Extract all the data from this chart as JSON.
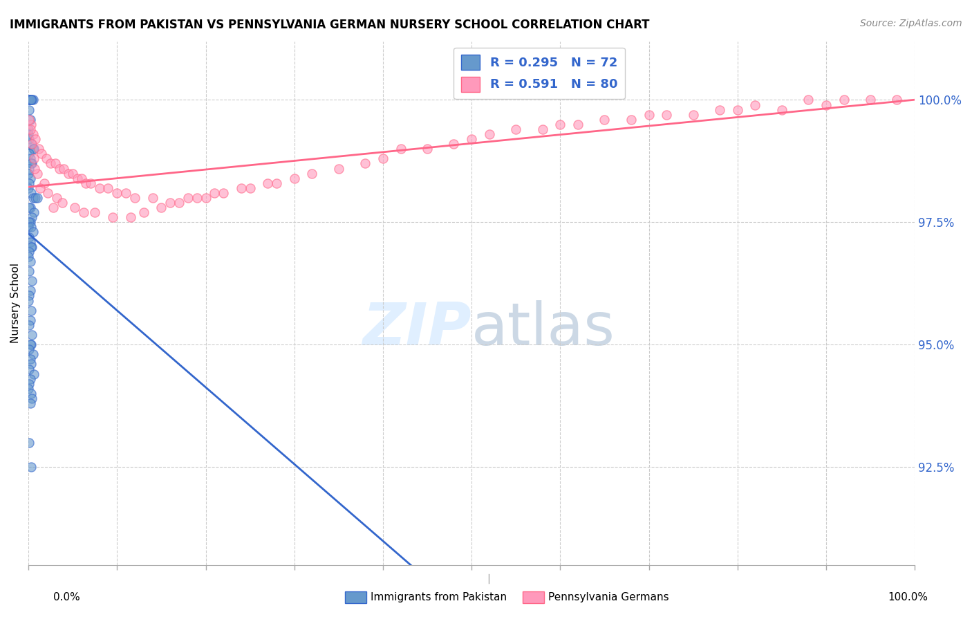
{
  "title": "IMMIGRANTS FROM PAKISTAN VS PENNSYLVANIA GERMAN NURSERY SCHOOL CORRELATION CHART",
  "source": "Source: ZipAtlas.com",
  "ylabel": "Nursery School",
  "legend_blue": {
    "label": "Immigrants from Pakistan",
    "R": 0.295,
    "N": 72
  },
  "legend_pink": {
    "label": "Pennsylvania Germans",
    "R": 0.591,
    "N": 80
  },
  "ytick_labels": [
    "92.5%",
    "95.0%",
    "97.5%",
    "100.0%"
  ],
  "ytick_values": [
    92.5,
    95.0,
    97.5,
    100.0
  ],
  "xlim": [
    0.0,
    100.0
  ],
  "ylim": [
    90.5,
    101.2
  ],
  "blue_color": "#6699CC",
  "pink_color": "#FF99BB",
  "blue_line_color": "#3366CC",
  "pink_line_color": "#FF6688",
  "blue_scatter": {
    "x": [
      0.2,
      0.5,
      0.3,
      0.1,
      0.0,
      0.0,
      0.1,
      0.2,
      0.4,
      0.3,
      0.1,
      0.2,
      0.0,
      0.0,
      0.1,
      0.3,
      0.5,
      0.6,
      0.1,
      0.2,
      0.4,
      0.3,
      0.1,
      0.0,
      0.2,
      0.1,
      0.0,
      0.3,
      0.5,
      0.8,
      1.0,
      0.2,
      0.1,
      0.6,
      0.4,
      0.2,
      0.1,
      0.0,
      0.3,
      0.5,
      0.1,
      0.2,
      0.4,
      0.3,
      0.1,
      0.0,
      0.2,
      0.1,
      0.4,
      0.2,
      0.1,
      0.0,
      0.3,
      0.2,
      0.1,
      0.4,
      0.3,
      0.2,
      0.1,
      0.5,
      0.2,
      0.3,
      0.1,
      0.6,
      0.2,
      0.1,
      0.0,
      0.3,
      0.4,
      0.2,
      0.1,
      0.3
    ],
    "y": [
      100.0,
      100.0,
      100.0,
      100.0,
      100.0,
      100.0,
      100.0,
      100.0,
      100.0,
      100.0,
      99.8,
      99.6,
      99.4,
      99.3,
      99.2,
      99.1,
      99.0,
      99.0,
      98.9,
      98.8,
      98.7,
      98.7,
      98.6,
      98.5,
      98.4,
      98.3,
      98.2,
      98.1,
      98.0,
      98.0,
      98.0,
      97.8,
      97.8,
      97.7,
      97.6,
      97.5,
      97.5,
      97.4,
      97.4,
      97.3,
      97.2,
      97.1,
      97.0,
      97.0,
      96.9,
      96.8,
      96.7,
      96.5,
      96.3,
      96.1,
      96.0,
      95.9,
      95.7,
      95.5,
      95.4,
      95.2,
      95.0,
      95.0,
      94.9,
      94.8,
      94.7,
      94.6,
      94.5,
      94.4,
      94.3,
      94.2,
      94.1,
      94.0,
      93.9,
      93.8,
      93.0,
      92.5
    ]
  },
  "pink_scatter": {
    "x": [
      0.3,
      0.5,
      0.8,
      1.2,
      1.5,
      2.0,
      2.5,
      3.0,
      3.5,
      4.0,
      4.5,
      5.0,
      5.5,
      6.0,
      6.5,
      7.0,
      8.0,
      9.0,
      10.0,
      11.0,
      12.0,
      14.0,
      16.0,
      18.0,
      20.0,
      22.0,
      25.0,
      28.0,
      30.0,
      35.0,
      40.0,
      45.0,
      50.0,
      55.0,
      60.0,
      65.0,
      70.0,
      75.0,
      80.0,
      85.0,
      90.0,
      95.0,
      0.2,
      0.4,
      0.6,
      1.0,
      1.8,
      2.2,
      3.2,
      3.8,
      5.2,
      6.2,
      7.5,
      9.5,
      11.5,
      13.0,
      15.0,
      17.0,
      19.0,
      21.0,
      24.0,
      27.0,
      32.0,
      38.0,
      42.0,
      48.0,
      52.0,
      58.0,
      62.0,
      68.0,
      72.0,
      78.0,
      82.0,
      88.0,
      92.0,
      98.0,
      0.1,
      0.7,
      1.3,
      2.8
    ],
    "y": [
      99.5,
      99.3,
      99.2,
      99.0,
      98.9,
      98.8,
      98.7,
      98.7,
      98.6,
      98.6,
      98.5,
      98.5,
      98.4,
      98.4,
      98.3,
      98.3,
      98.2,
      98.2,
      98.1,
      98.1,
      98.0,
      98.0,
      97.9,
      98.0,
      98.0,
      98.1,
      98.2,
      98.3,
      98.4,
      98.6,
      98.8,
      99.0,
      99.2,
      99.4,
      99.5,
      99.6,
      99.7,
      99.7,
      99.8,
      99.8,
      99.9,
      100.0,
      99.4,
      99.1,
      98.8,
      98.5,
      98.3,
      98.1,
      98.0,
      97.9,
      97.8,
      97.7,
      97.7,
      97.6,
      97.6,
      97.7,
      97.8,
      97.9,
      98.0,
      98.1,
      98.2,
      98.3,
      98.5,
      98.7,
      99.0,
      99.1,
      99.3,
      99.4,
      99.5,
      99.6,
      99.7,
      99.8,
      99.9,
      100.0,
      100.0,
      100.0,
      99.6,
      98.6,
      98.2,
      97.8
    ]
  }
}
